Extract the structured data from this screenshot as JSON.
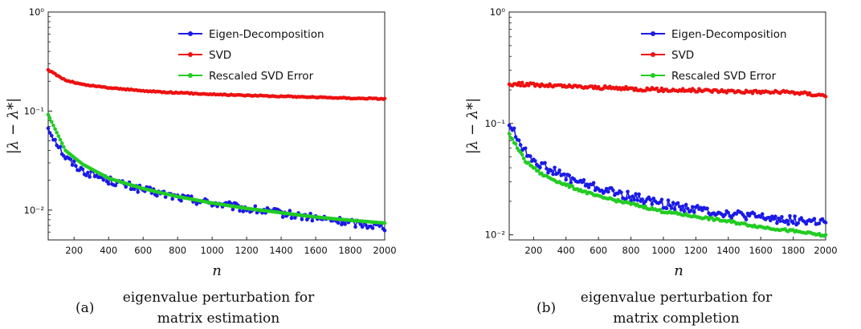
{
  "chart_data": [
    {
      "type": "line",
      "panel_label": "(a)",
      "caption_lines": [
        "eigenvalue perturbation for",
        "matrix estimation"
      ],
      "xlabel": "n",
      "ylabel": "|λ − λ*|",
      "xlim": [
        50,
        2000
      ],
      "ylim": [
        0.005,
        1
      ],
      "yscale": "log",
      "xticks": [
        200,
        400,
        600,
        800,
        1000,
        1200,
        1400,
        1600,
        1800,
        2000
      ],
      "yticks": [
        {
          "value": 1,
          "label": "10⁰"
        },
        {
          "value": 0.1,
          "label": "10⁻¹"
        },
        {
          "value": 0.01,
          "label": "10⁻²"
        }
      ],
      "grid": false,
      "legend_position": "top-right",
      "x": [
        50,
        150,
        250,
        400,
        600,
        800,
        1000,
        1200,
        1400,
        1600,
        1800,
        2000
      ],
      "series": [
        {
          "name": "Eigen-Decomposition",
          "color": "#1a1ae6",
          "noise": 0.09,
          "values": [
            0.068,
            0.034,
            0.025,
            0.02,
            0.016,
            0.0135,
            0.0118,
            0.0103,
            0.0093,
            0.0083,
            0.0075,
            0.0068
          ]
        },
        {
          "name": "SVD",
          "color": "#ee1111",
          "noise": 0.012,
          "values": [
            0.26,
            0.205,
            0.185,
            0.172,
            0.16,
            0.153,
            0.148,
            0.144,
            0.141,
            0.138,
            0.135,
            0.133
          ]
        },
        {
          "name": "Rescaled SVD Error",
          "color": "#22cc22",
          "noise": 0.0,
          "values": [
            0.092,
            0.04,
            0.029,
            0.021,
            0.0165,
            0.0137,
            0.0118,
            0.0104,
            0.0094,
            0.0085,
            0.0079,
            0.0074
          ]
        }
      ]
    },
    {
      "type": "line",
      "panel_label": "(b)",
      "caption_lines": [
        "eigenvalue perturbation for",
        "matrix completion"
      ],
      "xlabel": "n",
      "ylabel": "|λ − λ*|",
      "xlim": [
        50,
        2000
      ],
      "ylim": [
        0.009,
        1
      ],
      "yscale": "log",
      "xticks": [
        200,
        400,
        600,
        800,
        1000,
        1200,
        1400,
        1600,
        1800,
        2000
      ],
      "yticks": [
        {
          "value": 1,
          "label": "10⁰"
        },
        {
          "value": 0.1,
          "label": "10⁻¹"
        },
        {
          "value": 0.01,
          "label": "10⁻²"
        }
      ],
      "grid": false,
      "legend_position": "top-right",
      "x": [
        50,
        150,
        250,
        400,
        600,
        800,
        1000,
        1200,
        1400,
        1600,
        1800,
        2000
      ],
      "series": [
        {
          "name": "Eigen-Decomposition",
          "color": "#1a1ae6",
          "noise": 0.09,
          "values": [
            0.1,
            0.055,
            0.042,
            0.033,
            0.026,
            0.022,
            0.019,
            0.017,
            0.0155,
            0.0143,
            0.0135,
            0.013
          ]
        },
        {
          "name": "SVD",
          "color": "#ee1111",
          "noise": 0.035,
          "values": [
            0.225,
            0.225,
            0.22,
            0.215,
            0.21,
            0.205,
            0.2,
            0.198,
            0.195,
            0.192,
            0.19,
            0.178
          ]
        },
        {
          "name": "Rescaled SVD Error",
          "color": "#22cc22",
          "noise": 0.025,
          "values": [
            0.08,
            0.046,
            0.035,
            0.028,
            0.022,
            0.019,
            0.0162,
            0.0146,
            0.0132,
            0.0118,
            0.0108,
            0.0098
          ]
        }
      ]
    }
  ]
}
